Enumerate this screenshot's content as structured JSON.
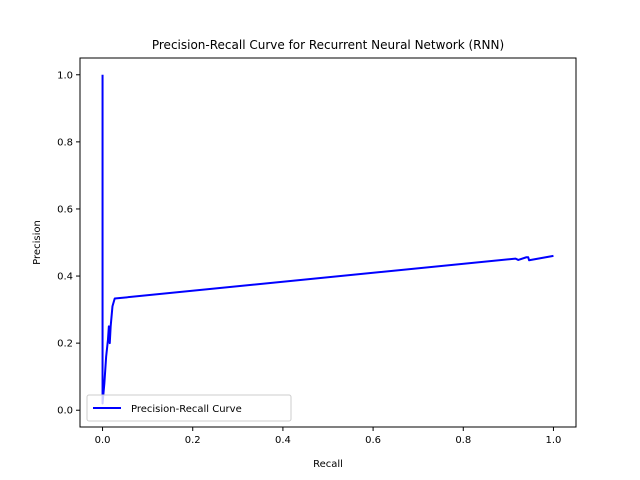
{
  "chart_data": {
    "type": "line",
    "title": "Precision-Recall Curve for Recurrent Neural Network (RNN)",
    "xlabel": "Recall",
    "ylabel": "Precision",
    "xlim": [
      -0.05,
      1.05
    ],
    "ylim": [
      -0.05,
      1.05
    ],
    "xticks": [
      0.0,
      0.2,
      0.4,
      0.6,
      0.8,
      1.0
    ],
    "xtick_labels": [
      "0.0",
      "0.2",
      "0.4",
      "0.6",
      "0.8",
      "1.0"
    ],
    "yticks": [
      0.0,
      0.2,
      0.4,
      0.6,
      0.8,
      1.0
    ],
    "ytick_labels": [
      "0.0",
      "0.2",
      "0.4",
      "0.6",
      "0.8",
      "1.0"
    ],
    "grid": false,
    "legend_position": "lower left",
    "series": [
      {
        "name": "Precision-Recall Curve",
        "color": "#0000ff",
        "x": [
          0.0,
          0.0,
          0.0,
          0.0,
          0.004,
          0.008,
          0.012,
          0.014,
          0.016,
          0.018,
          0.022,
          0.027,
          0.916,
          0.922,
          0.94,
          0.944,
          0.946,
          1.0
        ],
        "y": [
          1.0,
          0.5,
          0.05,
          0.02,
          0.08,
          0.16,
          0.21,
          0.25,
          0.2,
          0.25,
          0.31,
          0.333,
          0.452,
          0.448,
          0.456,
          0.456,
          0.447,
          0.46
        ]
      }
    ]
  }
}
